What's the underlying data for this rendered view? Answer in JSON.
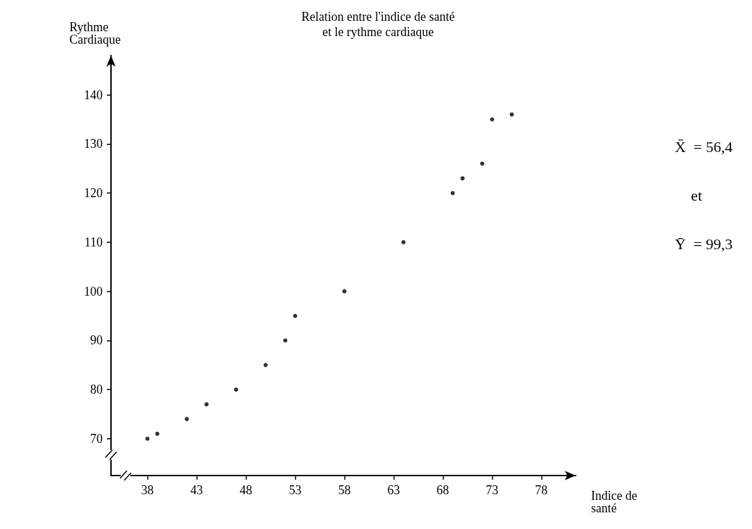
{
  "chart_data": {
    "type": "scatter",
    "title": "Relation entre l'indice de santé\net le rythme cardiaque",
    "xlabel": "Indice de\nsanté",
    "ylabel": "Rythme\nCardiaque",
    "x": [
      38,
      39,
      42,
      44,
      47,
      50,
      52,
      53,
      58,
      64,
      69,
      70,
      72,
      73,
      75
    ],
    "series": [
      {
        "color": "#000000",
        "values": [
          70,
          71,
          74,
          77,
          80,
          85,
          90,
          95,
          100,
          110,
          120,
          123,
          126,
          135,
          136
        ]
      }
    ],
    "xlim": [
      34.3,
      81.5
    ],
    "xticks": [
      38,
      43,
      48,
      53,
      58,
      63,
      68,
      73,
      78
    ],
    "ylim": [
      62.5,
      148
    ],
    "yticks": [
      70,
      80,
      90,
      100,
      110,
      120,
      130,
      140
    ],
    "marker": "circle",
    "grid": false,
    "annotations": [
      "X̄  = 56,4",
      "et",
      "Ȳ  = 99,3"
    ]
  }
}
